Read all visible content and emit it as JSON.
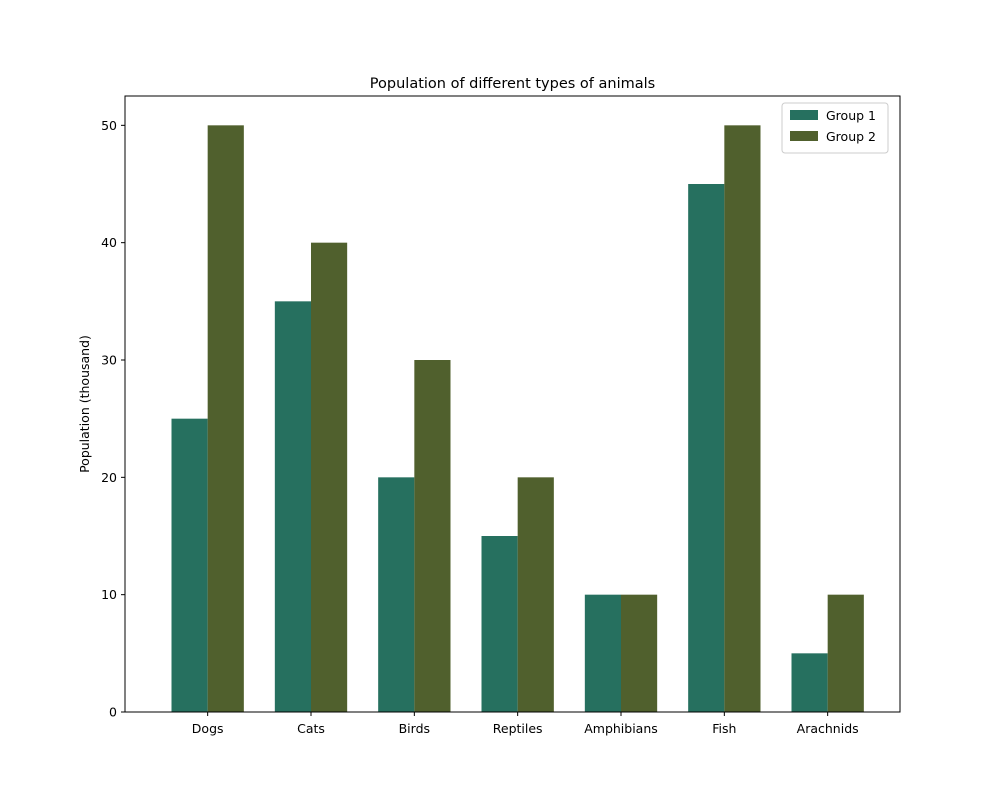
{
  "chart_data": {
    "type": "bar",
    "title": "Population of different types of animals",
    "xlabel": "",
    "ylabel": "Population (thousand)",
    "categories": [
      "Dogs",
      "Cats",
      "Birds",
      "Reptiles",
      "Amphibians",
      "Fish",
      "Arachnids"
    ],
    "series": [
      {
        "name": "Group 1",
        "values": [
          25,
          35,
          20,
          15,
          10,
          45,
          5
        ],
        "color": "#26705f"
      },
      {
        "name": "Group 2",
        "values": [
          50,
          40,
          30,
          20,
          10,
          50,
          10
        ],
        "color": "#50602d"
      }
    ],
    "ylim": [
      0,
      52.5
    ],
    "yticks": [
      0,
      10,
      20,
      30,
      40,
      50
    ],
    "grid": false,
    "legend_position": "top-right"
  }
}
